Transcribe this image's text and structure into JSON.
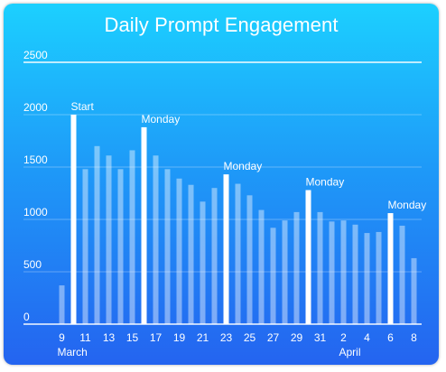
{
  "chart_data": {
    "type": "bar",
    "title": "Daily Prompt Engagement",
    "ylim": [
      0,
      2500
    ],
    "yticks": [
      0,
      500,
      1000,
      1500,
      2000,
      2500
    ],
    "grid": true,
    "dates": [
      "9",
      "10",
      "11",
      "12",
      "13",
      "14",
      "15",
      "16",
      "17",
      "18",
      "19",
      "20",
      "21",
      "22",
      "23",
      "24",
      "25",
      "26",
      "27",
      "28",
      "29",
      "30",
      "31",
      "1",
      "2",
      "3",
      "4",
      "5",
      "6",
      "7",
      "8"
    ],
    "x_tick_labels": [
      "9",
      "11",
      "13",
      "15",
      "17",
      "19",
      "21",
      "23",
      "25",
      "27",
      "29",
      "31",
      "2",
      "4",
      "6",
      "8"
    ],
    "month_labels": [
      {
        "label": "March",
        "at": "9"
      },
      {
        "label": "April",
        "at": "2"
      }
    ],
    "series": [
      {
        "values": [
          370,
          2000,
          1480,
          1700,
          1610,
          1480,
          1660,
          1880,
          1610,
          1480,
          1390,
          1330,
          1170,
          1300,
          1430,
          1340,
          1230,
          1090,
          920,
          990,
          1070,
          1280,
          1070,
          980,
          990,
          950,
          870,
          880,
          1060,
          940,
          630
        ],
        "highlight": [
          false,
          true,
          false,
          false,
          false,
          false,
          false,
          true,
          false,
          false,
          false,
          false,
          false,
          false,
          true,
          false,
          false,
          false,
          false,
          false,
          false,
          true,
          false,
          false,
          false,
          false,
          false,
          false,
          true,
          false,
          false
        ]
      }
    ],
    "annotations": [
      {
        "index": 1,
        "text": "Start"
      },
      {
        "index": 7,
        "text": "Monday"
      },
      {
        "index": 14,
        "text": "Monday"
      },
      {
        "index": 21,
        "text": "Monday"
      },
      {
        "index": 28,
        "text": "Monday"
      }
    ]
  }
}
